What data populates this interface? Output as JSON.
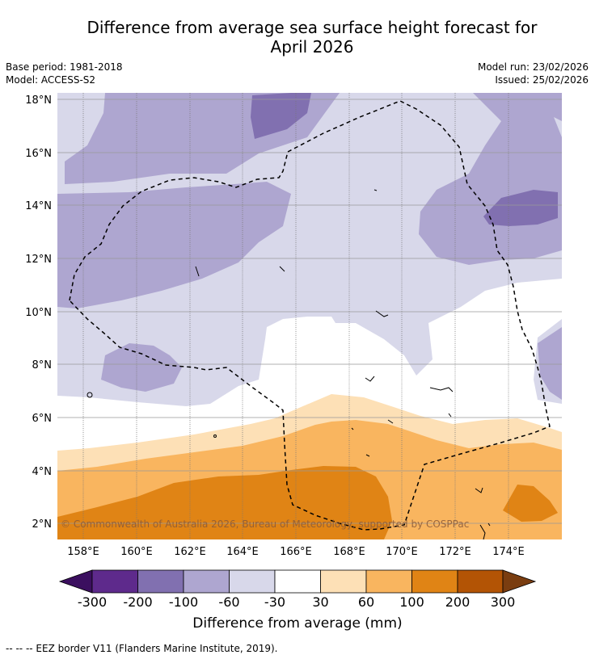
{
  "title_line1": "Difference from average sea surface height forecast for",
  "title_line2": "April 2026",
  "meta": {
    "base_period": "Base period: 1981-2018",
    "model": "Model: ACCESS-S2",
    "model_run": "Model run: 23/02/2026",
    "issued": "Issued: 25/02/2026"
  },
  "lat_labels": [
    "18°N",
    "16°N",
    "14°N",
    "12°N",
    "10°N",
    "8°N",
    "6°N",
    "4°N",
    "2°N"
  ],
  "lon_labels": [
    "158°E",
    "160°E",
    "162°E",
    "164°E",
    "166°E",
    "168°E",
    "170°E",
    "172°E",
    "174°E"
  ],
  "copyright": "© Commonwealth of Australia 2026, Bureau of Meteorology, supported by COSPPac",
  "colorbar": {
    "ticks": [
      "-300",
      "-200",
      "-100",
      "-60",
      "-30",
      "30",
      "60",
      "100",
      "200",
      "300"
    ],
    "colors": {
      "lt_m300": "#3b0f5f",
      "m300_m200": "#5e2a8c",
      "m200_m100": "#8170b0",
      "m100_m60": "#aea6d0",
      "m60_m30": "#d8d8ea",
      "m30_30": "#ffffff",
      "30_60": "#fde0b6",
      "60_100": "#f9b55f",
      "100_200": "#e08415",
      "200_300": "#b35405",
      "gt_300": "#7a3d10"
    },
    "label": "Difference from average (mm)"
  },
  "footnote": "--  --  -- EEZ border V11 (Flanders Marine Institute, 2019)."
}
